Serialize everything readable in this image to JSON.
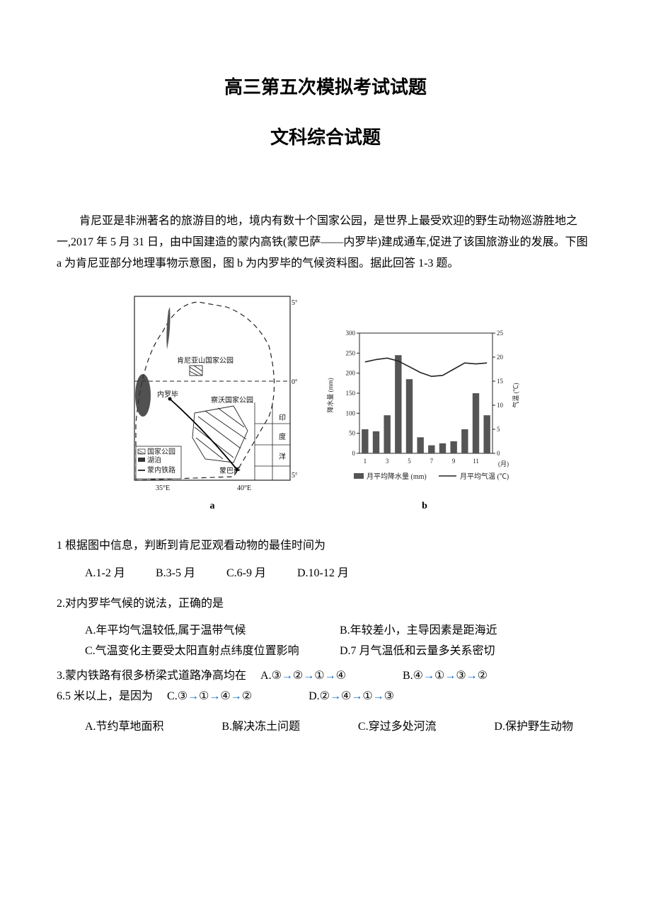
{
  "title": {
    "main": "高三第五次模拟考试试题",
    "sub": "文科综合试题"
  },
  "passage": "肯尼亚是非洲著名的旅游目的地，境内有数十个国家公园，是世界上最受欢迎的野生动物巡游胜地之一,2017 年 5 月 31 日，由中国建造的蒙内高铁(蒙巴萨——内罗毕)建成通车,促进了该国旅游业的发展。下图 a 为肯尼亚部分地理事物示意图，图 b 为内罗毕的气候资料图。据此回答 1-3 题。",
  "map": {
    "lat_labels": [
      "5°N",
      "0°",
      "5°S"
    ],
    "lon_labels": [
      "35°E",
      "40°E"
    ],
    "sea_label1": "印",
    "sea_label2": "度",
    "sea_label3": "洋",
    "park1": "肯尼亚山国家公园",
    "park2": "察沃国家公园",
    "city1": "内罗毕",
    "city2": "蒙巴萨",
    "legend1": "国家公园",
    "legend2": "湖泊",
    "legend3": "蒙内铁路",
    "fig_label": "a"
  },
  "climate": {
    "title_left": "降水量 (mm)",
    "title_right": "气温 (℃)",
    "y_left_ticks": [
      0,
      50,
      100,
      150,
      200,
      250,
      300
    ],
    "y_right_ticks": [
      0,
      5,
      10,
      15,
      20,
      25
    ],
    "x_ticks": [
      1,
      3,
      5,
      7,
      9,
      11
    ],
    "x_label": "(月)",
    "precip": [
      60,
      55,
      95,
      245,
      185,
      40,
      20,
      25,
      30,
      60,
      150,
      95
    ],
    "temp": [
      19.0,
      19.5,
      19.8,
      19.2,
      18.0,
      16.8,
      16.0,
      16.2,
      17.5,
      18.8,
      18.6,
      18.8
    ],
    "bar_color": "#555555",
    "line_color": "#222222",
    "grid_color": "#888888",
    "legend_precip": "月平均降水量 (mm)",
    "legend_temp": "月平均气温 (℃)",
    "fig_label": "b",
    "ylim_left": [
      0,
      300
    ],
    "ylim_right": [
      0,
      25
    ]
  },
  "q1": {
    "stem": "1 根据图中信息，判断到肯尼亚观看动物的最佳时间为",
    "A": "A.1-2 月",
    "B": "B.3-5 月",
    "C": "C.6-9 月",
    "D": "D.10-12 月"
  },
  "q2": {
    "stem": "2.对内罗毕气候的说法，正确的是",
    "A": "A.年平均气温较低,属于温带气候",
    "B": "B.年较差小，主导因素是距海近",
    "C": "C.气温变化主要受太阳直射点纬度位置影响",
    "D": "D.7 月气温低和云量多关系密切"
  },
  "q3": {
    "stem1": "3.蒙内铁路有很多桥梁式道路净高均在",
    "stem2": "6.5 米以上，是因为",
    "seqA_label": "A.",
    "seqA": "③ → ② → ① → ④",
    "seqB_label": "B.",
    "seqB": " ④ → ① → ③ → ②",
    "seqC_label": "C.",
    "seqC": "③ → ① → ④ → ②",
    "seqD_label": "D.",
    "seqD": " ② → ④ → ① → ③",
    "A": "A.节约草地面积",
    "B": "B.解决冻土问题",
    "C": "C.穿过多处河流",
    "D": "D.保护野生动物"
  }
}
